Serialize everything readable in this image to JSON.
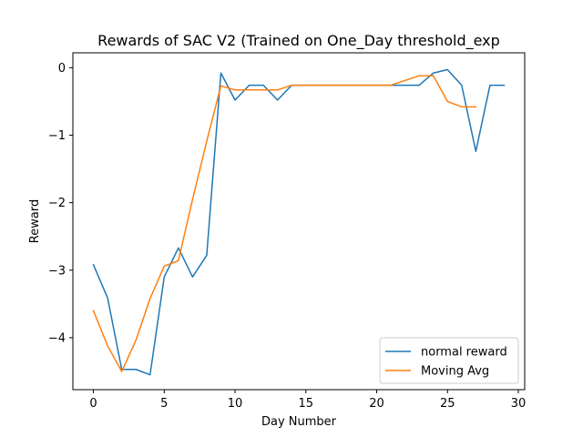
{
  "chart_data": {
    "type": "line",
    "title": "Rewards of SAC V2 (Trained on One_Day threshold_exp",
    "xlabel": "Day Number",
    "ylabel": "Reward",
    "xlim": [
      -1.45,
      30.45
    ],
    "ylim": [
      -4.77,
      0.22
    ],
    "xticks": [
      0,
      5,
      10,
      15,
      20,
      25,
      30
    ],
    "xtick_labels": [
      "0",
      "5",
      "10",
      "15",
      "20",
      "25",
      "30"
    ],
    "yticks": [
      0,
      -1,
      -2,
      -3,
      -4
    ],
    "ytick_labels": [
      "0",
      "−1",
      "−2",
      "−3",
      "−4"
    ],
    "grid": false,
    "legend_position": "lower-right",
    "series": [
      {
        "name": "normal reward",
        "color": "#1f77b4",
        "x": [
          0,
          1,
          2,
          3,
          4,
          5,
          6,
          7,
          8,
          9,
          10,
          11,
          12,
          13,
          14,
          15,
          16,
          17,
          18,
          19,
          20,
          21,
          22,
          23,
          24,
          25,
          26,
          27,
          28,
          29
        ],
        "y": [
          -2.92,
          -3.41,
          -4.47,
          -4.47,
          -4.55,
          -3.1,
          -2.67,
          -3.1,
          -2.78,
          -0.08,
          -0.48,
          -0.26,
          -0.26,
          -0.48,
          -0.26,
          -0.26,
          -0.26,
          -0.26,
          -0.26,
          -0.26,
          -0.26,
          -0.26,
          -0.26,
          -0.26,
          -0.08,
          -0.03,
          -0.26,
          -1.24,
          -0.26,
          -0.26
        ]
      },
      {
        "name": "Moving Avg",
        "color": "#ff7f0e",
        "x": [
          0,
          1,
          2,
          3,
          4,
          5,
          6,
          7,
          8,
          9,
          10,
          11,
          12,
          13,
          14,
          15,
          16,
          17,
          18,
          19,
          20,
          21,
          22,
          23,
          24,
          25,
          26,
          27
        ],
        "y": [
          -3.6,
          -4.12,
          -4.5,
          -4.04,
          -3.42,
          -2.94,
          -2.86,
          -1.95,
          -1.09,
          -0.27,
          -0.33,
          -0.33,
          -0.33,
          -0.33,
          -0.26,
          -0.26,
          -0.26,
          -0.26,
          -0.26,
          -0.26,
          -0.26,
          -0.26,
          -0.19,
          -0.12,
          -0.12,
          -0.5,
          -0.58,
          -0.58
        ]
      }
    ]
  }
}
